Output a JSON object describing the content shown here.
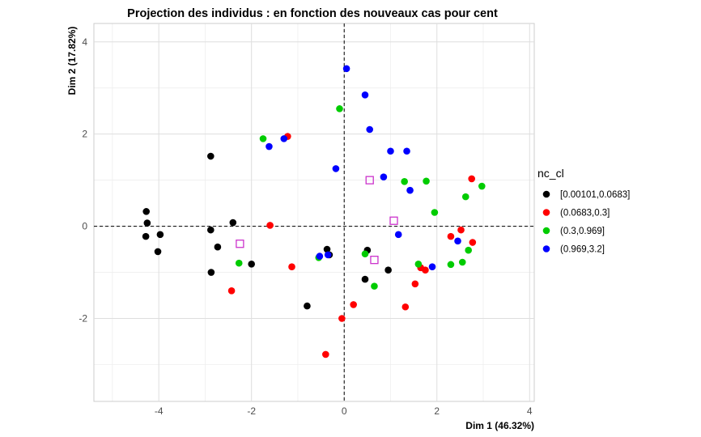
{
  "chart_data": {
    "type": "scatter",
    "title": "Projection des individus : en fonction des nouveaux cas pour cent",
    "xlabel": "Dim 1 (46.32%)",
    "ylabel": "Dim 2 (17.82%)",
    "xlim": [
      -5.4,
      4.1
    ],
    "ylim": [
      -3.8,
      4.4
    ],
    "xticks": [
      -4,
      -2,
      0,
      2,
      4
    ],
    "yticks": [
      -2,
      0,
      2,
      4
    ],
    "grid": true,
    "reference_lines": {
      "x": 0,
      "y": 0
    },
    "legend": {
      "title": "nc_cl",
      "position": "right"
    },
    "series": [
      {
        "name": "[0.00101,0.0683]",
        "color": "#000000",
        "points": [
          [
            -4.27,
            0.32
          ],
          [
            -4.25,
            0.07
          ],
          [
            -4.28,
            -0.22
          ],
          [
            -3.97,
            -0.18
          ],
          [
            -4.02,
            -0.55
          ],
          [
            -2.88,
            1.52
          ],
          [
            -2.4,
            0.08
          ],
          [
            -2.88,
            -0.08
          ],
          [
            -2.73,
            -0.45
          ],
          [
            -2.0,
            -0.82
          ],
          [
            -2.87,
            -1.0
          ],
          [
            -0.8,
            -1.73
          ],
          [
            -0.37,
            -0.5
          ],
          [
            -0.32,
            -0.62
          ],
          [
            0.5,
            -0.52
          ],
          [
            0.45,
            -1.15
          ],
          [
            0.95,
            -0.95
          ]
        ]
      },
      {
        "name": "(0.0683,0.3]",
        "color": "#ff0000",
        "points": [
          [
            -1.22,
            1.95
          ],
          [
            -1.6,
            0.02
          ],
          [
            -1.13,
            -0.88
          ],
          [
            -2.43,
            -1.4
          ],
          [
            -0.05,
            -2.0
          ],
          [
            -0.4,
            -2.78
          ],
          [
            0.2,
            -1.7
          ],
          [
            1.32,
            -1.75
          ],
          [
            1.53,
            -1.25
          ],
          [
            1.65,
            -0.9
          ],
          [
            1.75,
            -0.95
          ],
          [
            2.3,
            -0.22
          ],
          [
            2.52,
            -0.08
          ],
          [
            2.77,
            -0.35
          ],
          [
            2.75,
            1.03
          ]
        ]
      },
      {
        "name": "(0.3,0.969]",
        "color": "#00cc00",
        "points": [
          [
            -1.75,
            1.9
          ],
          [
            -0.1,
            2.55
          ],
          [
            -2.27,
            -0.8
          ],
          [
            -0.55,
            -0.68
          ],
          [
            0.45,
            -0.6
          ],
          [
            0.65,
            -1.3
          ],
          [
            1.3,
            0.97
          ],
          [
            1.77,
            0.98
          ],
          [
            1.95,
            0.3
          ],
          [
            1.6,
            -0.82
          ],
          [
            2.3,
            -0.83
          ],
          [
            2.55,
            -0.78
          ],
          [
            2.68,
            -0.52
          ],
          [
            2.62,
            0.64
          ],
          [
            2.97,
            0.87
          ]
        ]
      },
      {
        "name": "(0.969,3.2]",
        "color": "#0000ff",
        "points": [
          [
            0.05,
            3.42
          ],
          [
            0.45,
            2.85
          ],
          [
            0.55,
            2.1
          ],
          [
            1.0,
            1.63
          ],
          [
            1.35,
            1.63
          ],
          [
            -1.3,
            1.9
          ],
          [
            -1.62,
            1.73
          ],
          [
            -0.18,
            1.25
          ],
          [
            0.85,
            1.07
          ],
          [
            1.42,
            0.78
          ],
          [
            1.17,
            -0.18
          ],
          [
            -0.53,
            -0.65
          ],
          [
            -0.35,
            -0.62
          ],
          [
            1.9,
            -0.88
          ],
          [
            2.45,
            -0.32
          ]
        ]
      }
    ],
    "centroids": {
      "color": "#cc33cc",
      "points": [
        [
          -2.25,
          -0.38
        ],
        [
          0.55,
          1.0
        ],
        [
          1.07,
          0.12
        ],
        [
          0.65,
          -0.73
        ]
      ]
    }
  }
}
